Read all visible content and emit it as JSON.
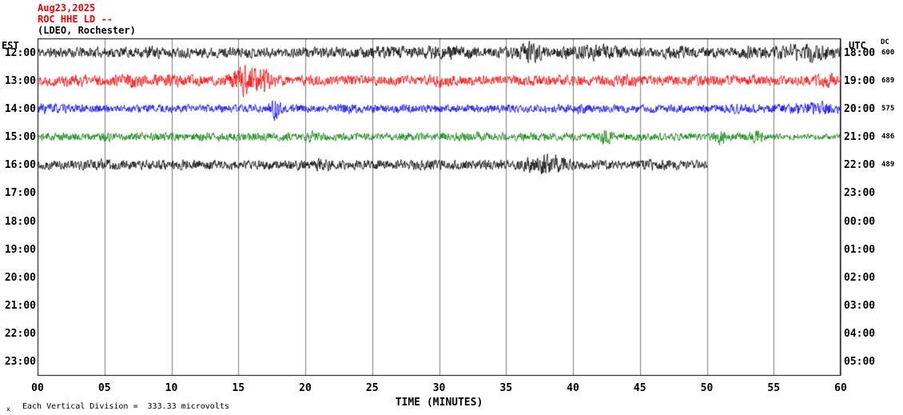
{
  "header": {
    "date": "Aug23,2025",
    "station": "ROC HHE LD --",
    "network": "(LDEO, Rochester)"
  },
  "axes": {
    "left_label": "EST",
    "right_label": "UTC",
    "dc_label": "DC",
    "x_title": "TIME (MINUTES)",
    "x_ticks": [
      "00",
      "05",
      "10",
      "15",
      "20",
      "25",
      "30",
      "35",
      "40",
      "45",
      "50",
      "55",
      "60"
    ],
    "left_times": [
      "12:00",
      "13:00",
      "14:00",
      "15:00",
      "16:00",
      "17:00",
      "18:00",
      "19:00",
      "20:00",
      "21:00",
      "22:00",
      "23:00"
    ],
    "right_times": [
      "18:00",
      "19:00",
      "20:00",
      "21:00",
      "22:00",
      "23:00",
      "00:00",
      "01:00",
      "02:00",
      "03:00",
      "04:00",
      "05:00"
    ]
  },
  "footer": {
    "marker": "x",
    "scale_note": "Each Vertical Division =  333.33 microvolts"
  },
  "chart_data": {
    "type": "line",
    "subtype": "helicorder-seismogram",
    "title": "ROC HHE LD -- (LDEO, Rochester)",
    "date": "Aug23,2025",
    "xlabel": "TIME (MINUTES)",
    "x_range": [
      0,
      60
    ],
    "x_tick_interval_minutes": 5,
    "row_duration_minutes": 60,
    "vertical_division_microvolts": 333.33,
    "grid_color": "#7d7d7d",
    "rows": [
      {
        "est": "12:00",
        "utc": "18:00",
        "dc": "600",
        "color": "#000000",
        "end_minute": 60,
        "base_amp": 7,
        "seed": 11,
        "events": [
          [
            8.5,
            0.6,
            0.35
          ],
          [
            27,
            2.0,
            0.3
          ],
          [
            30.5,
            2.0,
            0.35
          ],
          [
            36.8,
            1.0,
            1.1
          ],
          [
            41.5,
            2.2,
            0.55
          ],
          [
            47.5,
            0.8,
            0.4
          ],
          [
            53,
            0.8,
            0.35
          ],
          [
            57.5,
            2.2,
            0.85
          ]
        ]
      },
      {
        "est": "13:00",
        "utc": "19:00",
        "dc": "689",
        "color": "#ff0000",
        "end_minute": 60,
        "base_amp": 7,
        "seed": 22,
        "events": [
          [
            3,
            1.2,
            0.25
          ],
          [
            7,
            0.7,
            0.65
          ],
          [
            9.8,
            1.2,
            0.35
          ],
          [
            15.8,
            1.2,
            2.3
          ],
          [
            17.2,
            0.5,
            0.9
          ],
          [
            30,
            0.5,
            0.25
          ],
          [
            44,
            0.8,
            0.3
          ],
          [
            59,
            0.8,
            0.5
          ]
        ]
      },
      {
        "est": "14:00",
        "utc": "20:00",
        "dc": "575",
        "color": "#0000ff",
        "end_minute": 60,
        "base_amp": 5.5,
        "seed": 33,
        "events": [
          [
            0.8,
            0.8,
            0.5
          ],
          [
            17.8,
            0.35,
            2.1
          ],
          [
            23,
            0.7,
            0.35
          ],
          [
            40.5,
            0.5,
            0.4
          ],
          [
            52,
            0.6,
            0.35
          ],
          [
            58,
            1.8,
            0.8
          ]
        ]
      },
      {
        "est": "15:00",
        "utc": "21:00",
        "dc": "486",
        "color": "#008000",
        "end_minute": 60,
        "base_amp": 5.5,
        "seed": 44,
        "events": [
          [
            5,
            0.5,
            0.35
          ],
          [
            20.5,
            0.4,
            0.5
          ],
          [
            33,
            0.5,
            0.35
          ],
          [
            42.5,
            0.35,
            1.6
          ],
          [
            51,
            0.4,
            1.0
          ],
          [
            53.8,
            0.35,
            0.9
          ]
        ],
        "damp": [
          [
            54.5,
            60,
            0.72
          ]
        ]
      },
      {
        "est": "16:00",
        "utc": "22:00",
        "dc": "489",
        "color": "#000000",
        "end_minute": 50,
        "base_amp": 6.5,
        "seed": 55,
        "events": [
          [
            5,
            0.8,
            0.25
          ],
          [
            21,
            1.0,
            0.3
          ],
          [
            38,
            1.4,
            1.25
          ],
          [
            45.5,
            0.7,
            0.3
          ]
        ]
      }
    ]
  }
}
